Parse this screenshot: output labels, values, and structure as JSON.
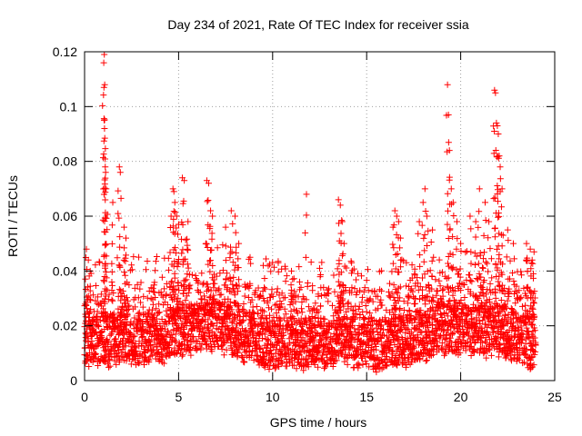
{
  "chart_data": {
    "type": "scatter",
    "title": "Day 234 of 2021, Rate Of TEC Index for receiver ssia",
    "xlabel": "GPS time / hours",
    "ylabel": "ROTI / TECUs",
    "xlim": [
      0,
      25
    ],
    "ylim": [
      0,
      0.12
    ],
    "xticks": [
      0,
      5,
      10,
      15,
      20,
      25
    ],
    "xtick_labels": [
      "0",
      "5",
      "10",
      "15",
      "20",
      "25"
    ],
    "yticks": [
      0,
      0.02,
      0.04,
      0.06,
      0.08,
      0.1,
      0.12
    ],
    "ytick_labels": [
      "0",
      "0.02",
      "0.04",
      "0.06",
      "0.08",
      "0.1",
      "0.12"
    ],
    "grid": true,
    "marker": "+",
    "color": "#ff0000",
    "series": [
      {
        "name": "ROTI",
        "baseline": [
          [
            0,
            0.014
          ],
          [
            2,
            0.016
          ],
          [
            4,
            0.016
          ],
          [
            5,
            0.019
          ],
          [
            6,
            0.02
          ],
          [
            7,
            0.021
          ],
          [
            8,
            0.018
          ],
          [
            10,
            0.014
          ],
          [
            12,
            0.014
          ],
          [
            13.5,
            0.015
          ],
          [
            15,
            0.014
          ],
          [
            16,
            0.013
          ],
          [
            17,
            0.015
          ],
          [
            18,
            0.017
          ],
          [
            19,
            0.019
          ],
          [
            20,
            0.02
          ],
          [
            21,
            0.019
          ],
          [
            22,
            0.018
          ],
          [
            23,
            0.016
          ],
          [
            24,
            0.014
          ]
        ],
        "spikes": [
          [
            1.05,
            0.119
          ],
          [
            1.02,
            0.116
          ],
          [
            1.07,
            0.108
          ],
          [
            1.03,
            0.107
          ],
          [
            1.04,
            0.095
          ],
          [
            1.06,
            0.092
          ],
          [
            1.1,
            0.078
          ],
          [
            1.12,
            0.076
          ],
          [
            1.15,
            0.07
          ],
          [
            1.5,
            0.065
          ],
          [
            1.85,
            0.078
          ],
          [
            1.9,
            0.076
          ],
          [
            2.1,
            0.056
          ],
          [
            2.2,
            0.052
          ],
          [
            0.1,
            0.048
          ],
          [
            0.2,
            0.044
          ],
          [
            0.3,
            0.04
          ],
          [
            4.7,
            0.07
          ],
          [
            4.75,
            0.069
          ],
          [
            4.8,
            0.065
          ],
          [
            4.9,
            0.06
          ],
          [
            5.0,
            0.057
          ],
          [
            5.2,
            0.074
          ],
          [
            5.3,
            0.073
          ],
          [
            5.5,
            0.058
          ],
          [
            4.6,
            0.06
          ],
          [
            6.5,
            0.073
          ],
          [
            6.6,
            0.072
          ],
          [
            6.7,
            0.062
          ],
          [
            6.8,
            0.06
          ],
          [
            7.5,
            0.056
          ],
          [
            7.8,
            0.062
          ],
          [
            8.0,
            0.06
          ],
          [
            8.2,
            0.05
          ],
          [
            8.8,
            0.045
          ],
          [
            9.5,
            0.042
          ],
          [
            10.3,
            0.043
          ],
          [
            11.0,
            0.04
          ],
          [
            11.8,
            0.068
          ],
          [
            12.5,
            0.041
          ],
          [
            13.5,
            0.066
          ],
          [
            13.6,
            0.064
          ],
          [
            13.7,
            0.058
          ],
          [
            13.8,
            0.05
          ],
          [
            14.2,
            0.043
          ],
          [
            16.5,
            0.062
          ],
          [
            16.6,
            0.06
          ],
          [
            16.7,
            0.058
          ],
          [
            16.8,
            0.052
          ],
          [
            16.4,
            0.056
          ],
          [
            17.8,
            0.058
          ],
          [
            18.0,
            0.065
          ],
          [
            18.1,
            0.07
          ],
          [
            18.2,
            0.06
          ],
          [
            18.5,
            0.055
          ],
          [
            19.3,
            0.108
          ],
          [
            19.35,
            0.097
          ],
          [
            19.4,
            0.084
          ],
          [
            19.5,
            0.07
          ],
          [
            19.6,
            0.065
          ],
          [
            19.8,
            0.058
          ],
          [
            20.0,
            0.05
          ],
          [
            20.5,
            0.06
          ],
          [
            20.8,
            0.058
          ],
          [
            21.0,
            0.07
          ],
          [
            21.3,
            0.065
          ],
          [
            21.5,
            0.058
          ],
          [
            21.8,
            0.106
          ],
          [
            21.85,
            0.105
          ],
          [
            21.9,
            0.094
          ],
          [
            21.95,
            0.093
          ],
          [
            22.0,
            0.09
          ],
          [
            22.05,
            0.082
          ],
          [
            22.1,
            0.078
          ],
          [
            22.2,
            0.07
          ],
          [
            22.5,
            0.055
          ],
          [
            22.8,
            0.05
          ],
          [
            23.5,
            0.05
          ],
          [
            23.7,
            0.048
          ],
          [
            23.9,
            0.047
          ],
          [
            23.5,
            0.044
          ],
          [
            23.8,
            0.044
          ]
        ]
      }
    ]
  }
}
